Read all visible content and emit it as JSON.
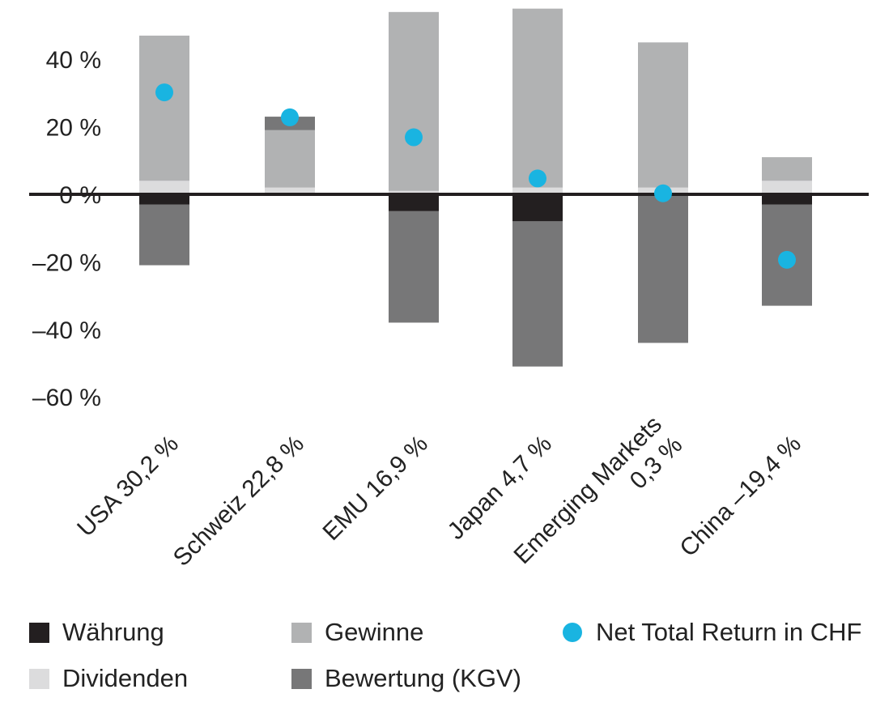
{
  "chart_data": {
    "type": "bar",
    "stacked": true,
    "categories": [
      [
        "USA 30,2 %"
      ],
      [
        "Schweiz 22,8 %"
      ],
      [
        "EMU 16,9 %"
      ],
      [
        "Japan 4,7 %"
      ],
      [
        "Emerging Markets",
        "0,3 %"
      ],
      [
        "China –19,4 %"
      ]
    ],
    "ylim": [
      -60,
      45
    ],
    "yticks": [
      {
        "value": 40,
        "label": "40 %"
      },
      {
        "value": 20,
        "label": "20 %"
      },
      {
        "value": 0,
        "label": "0 %"
      },
      {
        "value": -20,
        "label": "–20 %"
      },
      {
        "value": -40,
        "label": "–40 %"
      },
      {
        "value": -60,
        "label": "–60 %"
      }
    ],
    "grid": false,
    "legend_position": "bottom",
    "series": [
      {
        "name": "Währung",
        "color": "#231f20",
        "segments": [
          [
            0,
            -3
          ],
          [
            0,
            0
          ],
          [
            0,
            -5
          ],
          [
            0,
            -8
          ],
          [
            0,
            0
          ],
          [
            0,
            -3
          ]
        ]
      },
      {
        "name": "Dividenden",
        "color": "#dcdcdd",
        "segments": [
          [
            0,
            4
          ],
          [
            0,
            2
          ],
          [
            0,
            1
          ],
          [
            0,
            2
          ],
          [
            0,
            2
          ],
          [
            0,
            4
          ]
        ]
      },
      {
        "name": "Gewinne",
        "color": "#b1b2b3",
        "segments": [
          [
            4,
            47
          ],
          [
            2,
            19
          ],
          [
            1,
            54
          ],
          [
            2,
            55
          ],
          [
            2,
            45
          ],
          [
            4,
            11
          ]
        ]
      },
      {
        "name": "Bewertung (KGV)",
        "color": "#777778",
        "segments": [
          [
            -3,
            -21
          ],
          [
            19,
            23
          ],
          [
            -5,
            -38
          ],
          [
            -8,
            -51
          ],
          [
            0,
            -44
          ],
          [
            -3,
            -33
          ]
        ]
      }
    ],
    "net_total_return": {
      "name": "Net Total Return in CHF",
      "color": "#19b4e1",
      "values": [
        30.2,
        22.8,
        16.9,
        4.7,
        0.3,
        -19.4
      ]
    }
  }
}
